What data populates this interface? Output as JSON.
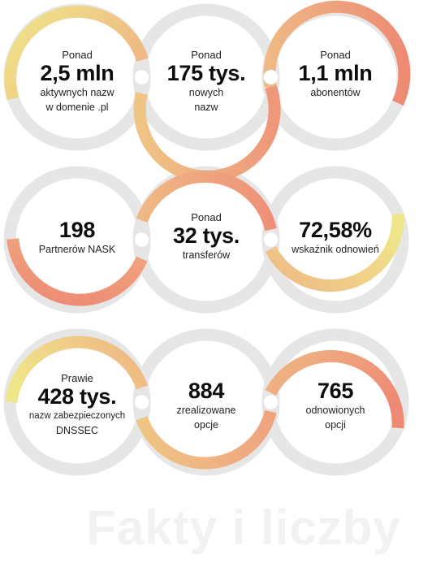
{
  "colors": {
    "track": "#e6e6e6",
    "yellow": "#efe68a",
    "orange": "#efb884",
    "salmon": "#ee8f78",
    "title": "#f2f2f2"
  },
  "stats": [
    {
      "pre": "Ponad",
      "big": "2,5 mln",
      "desc1": "aktywnych nazw",
      "desc2": "w domenie .pl"
    },
    {
      "pre": "Ponad",
      "big": "175 tys.",
      "desc1": "nowych",
      "desc2": "nazw"
    },
    {
      "pre": "Ponad",
      "big": "1,1 mln",
      "desc1": "abonentów",
      "desc2": ""
    },
    {
      "pre": "",
      "big": "198",
      "desc1": "Partnerów NASK",
      "desc2": ""
    },
    {
      "pre": "Ponad",
      "big": "32 tys.",
      "desc1": "transferów",
      "desc2": ""
    },
    {
      "pre": "",
      "big": "72,58%",
      "desc1": "wskaźnik odnowień",
      "desc2": ""
    },
    {
      "pre": "Prawie",
      "big": "428 tys.",
      "desc1": "nazw zabezpieczonych",
      "desc2": "DNSSEC"
    },
    {
      "pre": "",
      "big": "884",
      "desc1": "zrealizowane",
      "desc2": "opcje"
    },
    {
      "pre": "",
      "big": "765",
      "desc1": "odnowionych",
      "desc2": "opcji"
    }
  ],
  "footer": {
    "title": "Fakty i liczby"
  }
}
